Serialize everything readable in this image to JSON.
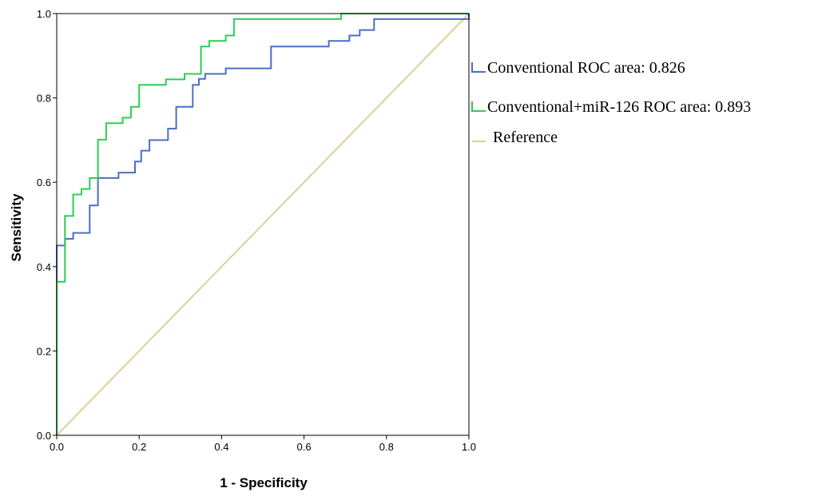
{
  "chart_data": {
    "type": "line",
    "title": "",
    "xlabel": "1 - Specificity",
    "ylabel": "Sensitivity",
    "xlim": [
      0,
      1
    ],
    "ylim": [
      0,
      1
    ],
    "xticks": [
      "0.0",
      "0.2",
      "0.4",
      "0.6",
      "0.8",
      "1.0"
    ],
    "yticks": [
      "0.0",
      "0.2",
      "0.4",
      "0.6",
      "0.8",
      "1.0"
    ],
    "grid": false,
    "legend_position": "right",
    "series": [
      {
        "name": "Conventional ROC area: 0.826",
        "color": "#4a6fc4",
        "points": [
          [
            0,
            0
          ],
          [
            0,
            0.45
          ],
          [
            0.02,
            0.45
          ],
          [
            0.02,
            0.466
          ],
          [
            0.04,
            0.466
          ],
          [
            0.04,
            0.48
          ],
          [
            0.08,
            0.48
          ],
          [
            0.08,
            0.545
          ],
          [
            0.1,
            0.545
          ],
          [
            0.1,
            0.61
          ],
          [
            0.15,
            0.61
          ],
          [
            0.15,
            0.623
          ],
          [
            0.19,
            0.623
          ],
          [
            0.19,
            0.649
          ],
          [
            0.205,
            0.649
          ],
          [
            0.205,
            0.675
          ],
          [
            0.225,
            0.675
          ],
          [
            0.225,
            0.7
          ],
          [
            0.27,
            0.7
          ],
          [
            0.27,
            0.727
          ],
          [
            0.29,
            0.727
          ],
          [
            0.29,
            0.779
          ],
          [
            0.33,
            0.779
          ],
          [
            0.33,
            0.831
          ],
          [
            0.345,
            0.831
          ],
          [
            0.345,
            0.845
          ],
          [
            0.36,
            0.845
          ],
          [
            0.36,
            0.857
          ],
          [
            0.41,
            0.857
          ],
          [
            0.41,
            0.87
          ],
          [
            0.52,
            0.87
          ],
          [
            0.52,
            0.922
          ],
          [
            0.66,
            0.922
          ],
          [
            0.66,
            0.935
          ],
          [
            0.71,
            0.935
          ],
          [
            0.71,
            0.948
          ],
          [
            0.735,
            0.948
          ],
          [
            0.735,
            0.961
          ],
          [
            0.77,
            0.961
          ],
          [
            0.77,
            0.987
          ],
          [
            1,
            0.987
          ],
          [
            1,
            1
          ]
        ]
      },
      {
        "name": "Conventional+miR-126 ROC area: 0.893",
        "color": "#2ecc55",
        "points": [
          [
            0,
            0
          ],
          [
            0,
            0.364
          ],
          [
            0.02,
            0.364
          ],
          [
            0.02,
            0.52
          ],
          [
            0.04,
            0.52
          ],
          [
            0.04,
            0.571
          ],
          [
            0.06,
            0.571
          ],
          [
            0.06,
            0.584
          ],
          [
            0.08,
            0.584
          ],
          [
            0.08,
            0.61
          ],
          [
            0.1,
            0.61
          ],
          [
            0.1,
            0.701
          ],
          [
            0.12,
            0.701
          ],
          [
            0.12,
            0.74
          ],
          [
            0.16,
            0.74
          ],
          [
            0.16,
            0.753
          ],
          [
            0.18,
            0.753
          ],
          [
            0.18,
            0.779
          ],
          [
            0.2,
            0.779
          ],
          [
            0.2,
            0.831
          ],
          [
            0.265,
            0.831
          ],
          [
            0.265,
            0.844
          ],
          [
            0.31,
            0.844
          ],
          [
            0.31,
            0.857
          ],
          [
            0.35,
            0.857
          ],
          [
            0.35,
            0.922
          ],
          [
            0.37,
            0.922
          ],
          [
            0.37,
            0.935
          ],
          [
            0.41,
            0.935
          ],
          [
            0.41,
            0.948
          ],
          [
            0.43,
            0.948
          ],
          [
            0.43,
            0.987
          ],
          [
            0.69,
            0.987
          ],
          [
            0.69,
            1
          ],
          [
            1,
            1
          ]
        ]
      },
      {
        "name": "Reference",
        "color": "#dccfa0",
        "points": [
          [
            0,
            0
          ],
          [
            1,
            1
          ]
        ]
      }
    ]
  }
}
